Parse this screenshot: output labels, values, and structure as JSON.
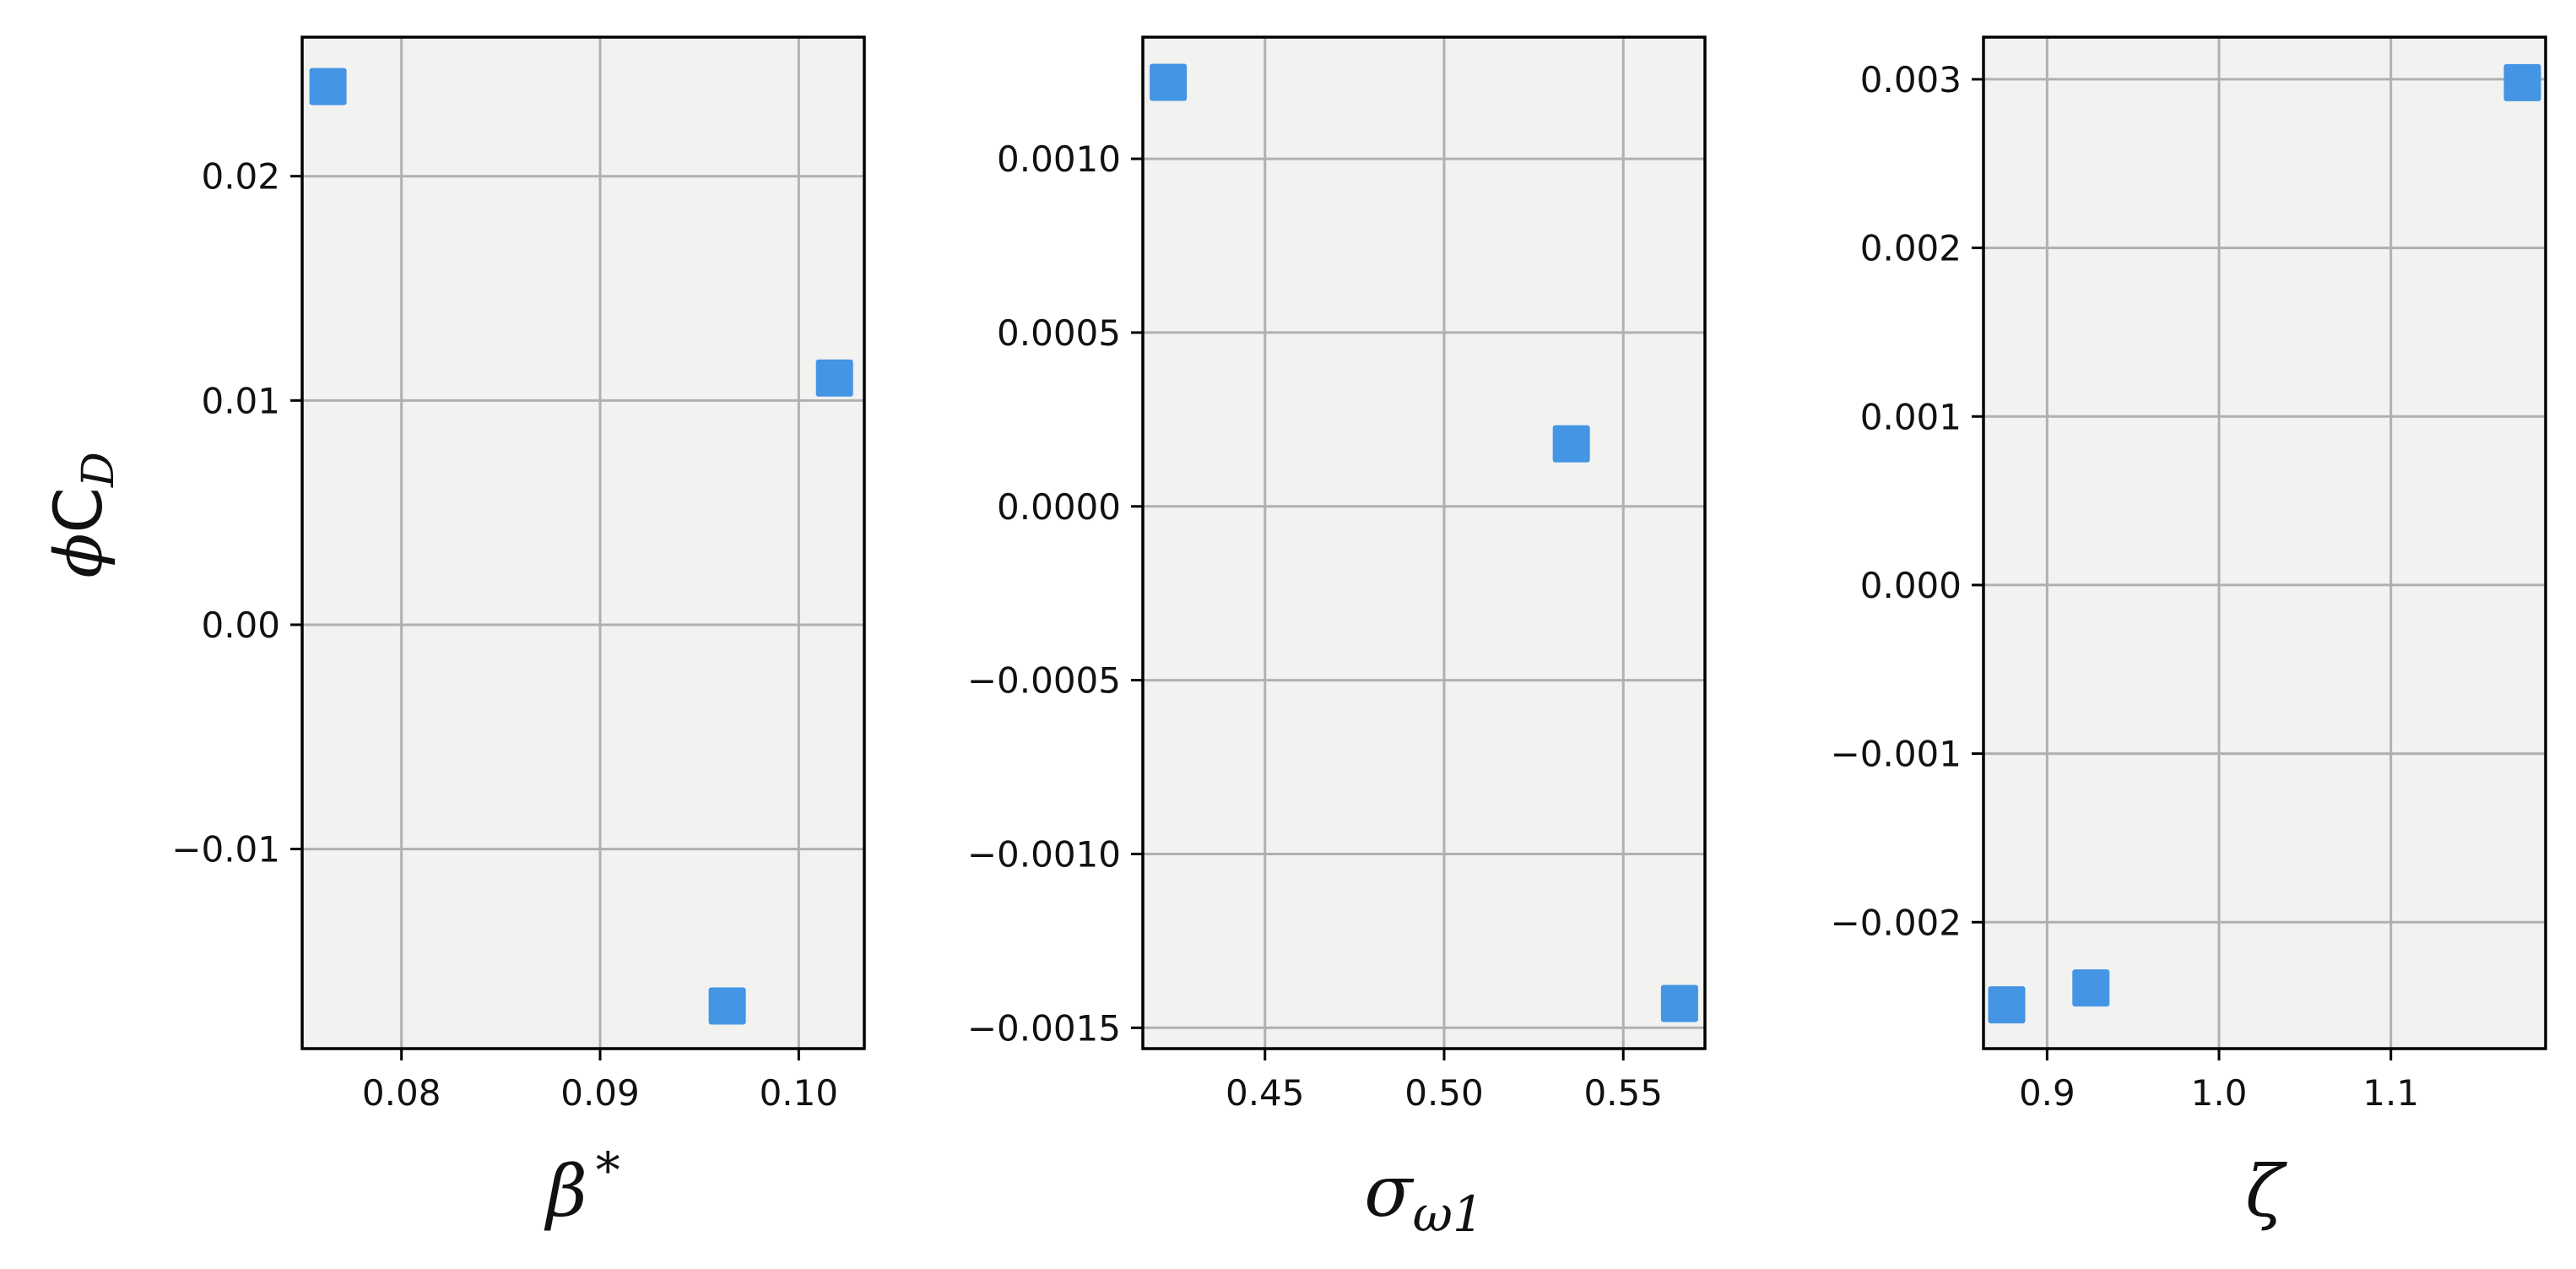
{
  "figure": {
    "ylabel_phi": "ϕ",
    "ylabel_c": "C",
    "ylabel_sub": "D"
  },
  "chart_data": [
    {
      "type": "scatter",
      "xlabel_main": "β",
      "xlabel_sup": "*",
      "xlabel_sub": "",
      "ylabel": "ϕC_D",
      "xlim": [
        0.075,
        0.1033
      ],
      "ylim": [
        -0.0189,
        0.0262
      ],
      "xticks": [
        0.08,
        0.09,
        0.1
      ],
      "xtick_labels": [
        "0.08",
        "0.09",
        "0.10"
      ],
      "yticks": [
        -0.01,
        0.0,
        0.01,
        0.02
      ],
      "ytick_labels": [
        "−0.01",
        "0.00",
        "0.01",
        "0.02"
      ],
      "grid": true,
      "marker": "square",
      "color": "#4495E4",
      "points": [
        {
          "x": 0.0763,
          "y": 0.024
        },
        {
          "x": 0.1018,
          "y": 0.011
        },
        {
          "x": 0.0964,
          "y": -0.017
        }
      ]
    },
    {
      "type": "scatter",
      "xlabel_main": "σ",
      "xlabel_sup": "",
      "xlabel_sub": "ω1",
      "ylabel": "",
      "xlim": [
        0.4159,
        0.5728
      ],
      "ylim": [
        -0.00156,
        0.00135
      ],
      "xticks": [
        0.45,
        0.5,
        0.55
      ],
      "xtick_labels": [
        "0.45",
        "0.50",
        "0.55"
      ],
      "yticks": [
        -0.0015,
        -0.001,
        -0.0005,
        0.0,
        0.0005,
        0.001
      ],
      "ytick_labels": [
        "−0.0015",
        "−0.0010",
        "−0.0005",
        "0.0000",
        "0.0005",
        "0.0010"
      ],
      "grid": true,
      "marker": "square",
      "color": "#4495E4",
      "points": [
        {
          "x": 0.423,
          "y": 0.00122
        },
        {
          "x": 0.5355,
          "y": 0.00018
        },
        {
          "x": 0.5657,
          "y": -0.00143
        }
      ]
    },
    {
      "type": "scatter",
      "xlabel_main": "ζ",
      "xlabel_sup": "",
      "xlabel_sub": "",
      "ylabel": "",
      "xlim": [
        0.863,
        1.19
      ],
      "ylim": [
        -0.00275,
        0.00325
      ],
      "xticks": [
        0.9,
        1.0,
        1.1
      ],
      "xtick_labels": [
        "0.9",
        "1.0",
        "1.1"
      ],
      "yticks": [
        -0.002,
        -0.001,
        0.0,
        0.001,
        0.002,
        0.003
      ],
      "ytick_labels": [
        "−0.002",
        "−0.001",
        "0.000",
        "0.001",
        "0.002",
        "0.003"
      ],
      "grid": true,
      "marker": "square",
      "color": "#4495E4",
      "points": [
        {
          "x": 1.1765,
          "y": 0.00298
        },
        {
          "x": 0.9255,
          "y": -0.00239
        },
        {
          "x": 0.8765,
          "y": -0.00249
        }
      ]
    }
  ]
}
